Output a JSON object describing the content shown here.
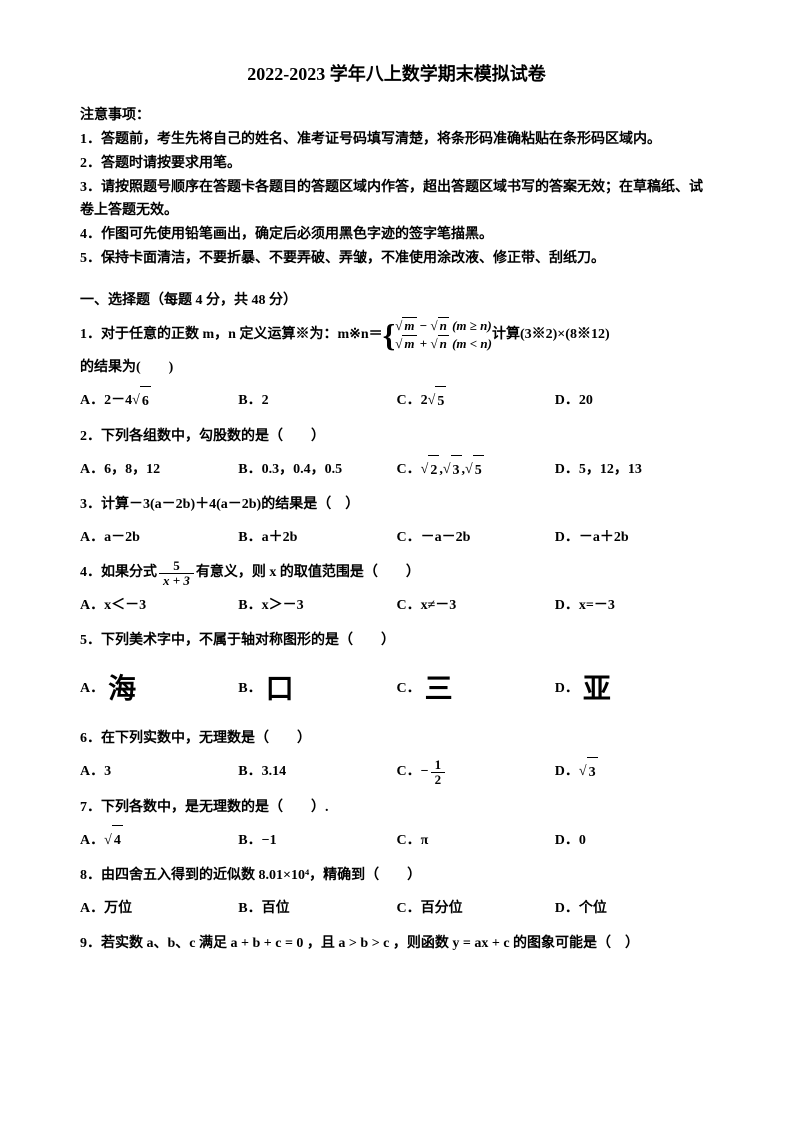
{
  "title": "2022-2023 学年八上数学期末模拟试卷",
  "notice_header": "注意事项：",
  "notices": [
    "1．答题前，考生先将自己的姓名、准考证号码填写清楚，将条形码准确粘贴在条形码区域内。",
    "2．答题时请按要求用笔。",
    "3．请按照题号顺序在答题卡各题目的答题区域内作答，超出答题区域书写的答案无效；在草稿纸、试卷上答题无效。",
    "4．作图可先使用铅笔画出，确定后必须用黑色字迹的签字笔描黑。",
    "5．保持卡面清洁，不要折暴、不要弄破、弄皱，不准使用涂改液、修正带、刮纸刀。"
  ],
  "section1": "一、选择题（每题 4 分，共 48 分）",
  "q1": {
    "prefix": "1．对于任意的正数 m，n 定义运算※为：m※n＝",
    "line1a": "m",
    "line1b": "n",
    "line1c": "(m ≥ n)",
    "line2a": "m",
    "line2b": "n",
    "line2c": "(m < n)",
    "suffix": " 计算(3※2)×(8※12)",
    "tail": "的结果为(　　)",
    "opts": [
      "A．2－4",
      "6",
      "B．2",
      "C．2",
      "5",
      "D．20"
    ]
  },
  "q2": {
    "text": "2．下列各组数中，勾股数的是（　　）",
    "opts": [
      "A．6，8，12",
      "B．0.3，0.4，0.5",
      "C．",
      "2",
      "3",
      "5",
      "D．5，12，13"
    ]
  },
  "q3": {
    "text": "3．计算－3(a－2b)＋4(a－2b)的结果是（　）",
    "opts": [
      "A．a－2b",
      "B．a＋2b",
      "C．－a－2b",
      "D．－a＋2b"
    ]
  },
  "q4": {
    "prefix": "4．如果分式",
    "num": "5",
    "den": "x + 3",
    "suffix": "有意义，则 x 的取值范围是（　　）",
    "opts": [
      "A．x＜－3",
      "B．x＞－3",
      "C．x≠－3",
      "D．x=－3"
    ]
  },
  "q5": {
    "text": "5．下列美术字中，不属于轴对称图形的是（　　）",
    "opts": [
      "A．",
      "海",
      "B．",
      "口",
      "C．",
      "三",
      "D．",
      "亚"
    ]
  },
  "q6": {
    "text": "6．在下列实数中，无理数是（　　）",
    "opts": [
      "A．3",
      "B．3.14",
      "C．",
      "1",
      "2",
      "D．",
      "3"
    ]
  },
  "q7": {
    "text": "7．下列各数中，是无理数的是（　　）.",
    "opts": [
      "A．",
      "4",
      "B．−1",
      "C．π",
      "D．0"
    ]
  },
  "q8": {
    "text": "8．由四舍五入得到的近似数 8.01×10⁴，精确到（　　）",
    "opts": [
      "A．万位",
      "B．百位",
      "C．百分位",
      "D．个位"
    ]
  },
  "q9": {
    "text": "9．若实数 a、b、c 满足 a + b + c = 0 ，且 a > b > c ，则函数 y = ax + c 的图象可能是（　）"
  }
}
